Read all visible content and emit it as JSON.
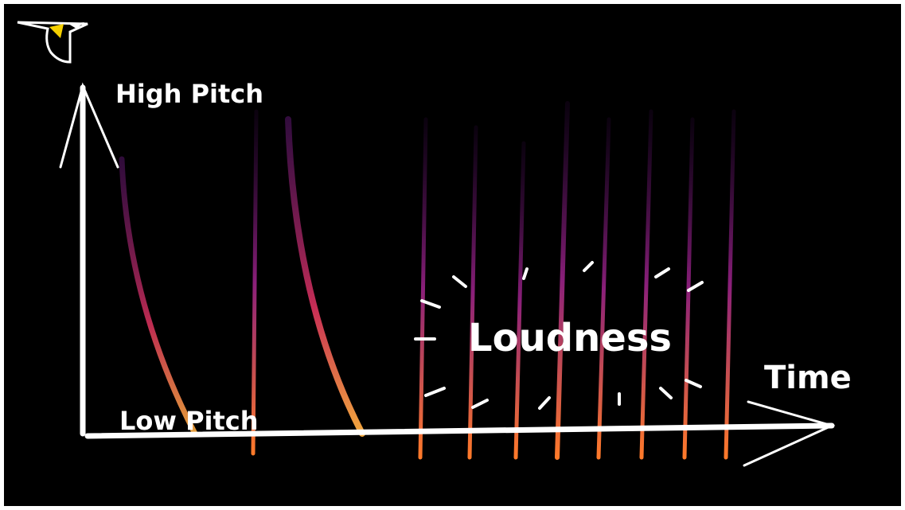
{
  "labels": {
    "high_pitch": "High Pitch",
    "low_pitch": "Low Pitch",
    "time": "Time",
    "loudness": "Loudness"
  }
}
